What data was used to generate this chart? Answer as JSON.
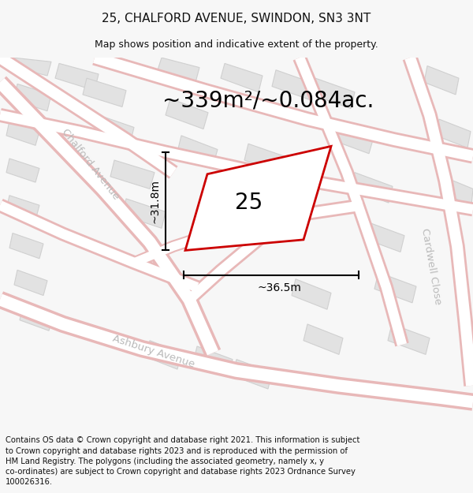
{
  "title": "25, CHALFORD AVENUE, SWINDON, SN3 3NT",
  "subtitle": "Map shows position and indicative extent of the property.",
  "area_text": "~339m²/~0.084ac.",
  "label_number": "25",
  "dim_width": "~36.5m",
  "dim_height": "~31.8m",
  "footer": "Contains OS data © Crown copyright and database right 2021. This information is subject to Crown copyright and database rights 2023 and is reproduced with the permission of HM Land Registry. The polygons (including the associated geometry, namely x, y co-ordinates) are subject to Crown copyright and database rights 2023 Ordnance Survey 100026316.",
  "bg_color": "#f7f7f7",
  "map_bg": "#ffffff",
  "road_stroke": "#e8b8b8",
  "road_fill": "#ffffff",
  "building_fill": "#e2e2e2",
  "building_stroke": "#d0d0d0",
  "plot_stroke": "#cc0000",
  "dim_color": "#111111",
  "street_label_color": "#bbbbbb",
  "title_color": "#111111",
  "footer_color": "#111111",
  "title_fontsize": 11,
  "subtitle_fontsize": 9,
  "area_fontsize": 20,
  "label_fontsize": 20,
  "dim_fontsize": 10,
  "street_fontsize": 9.5,
  "footer_fontsize": 7.2
}
